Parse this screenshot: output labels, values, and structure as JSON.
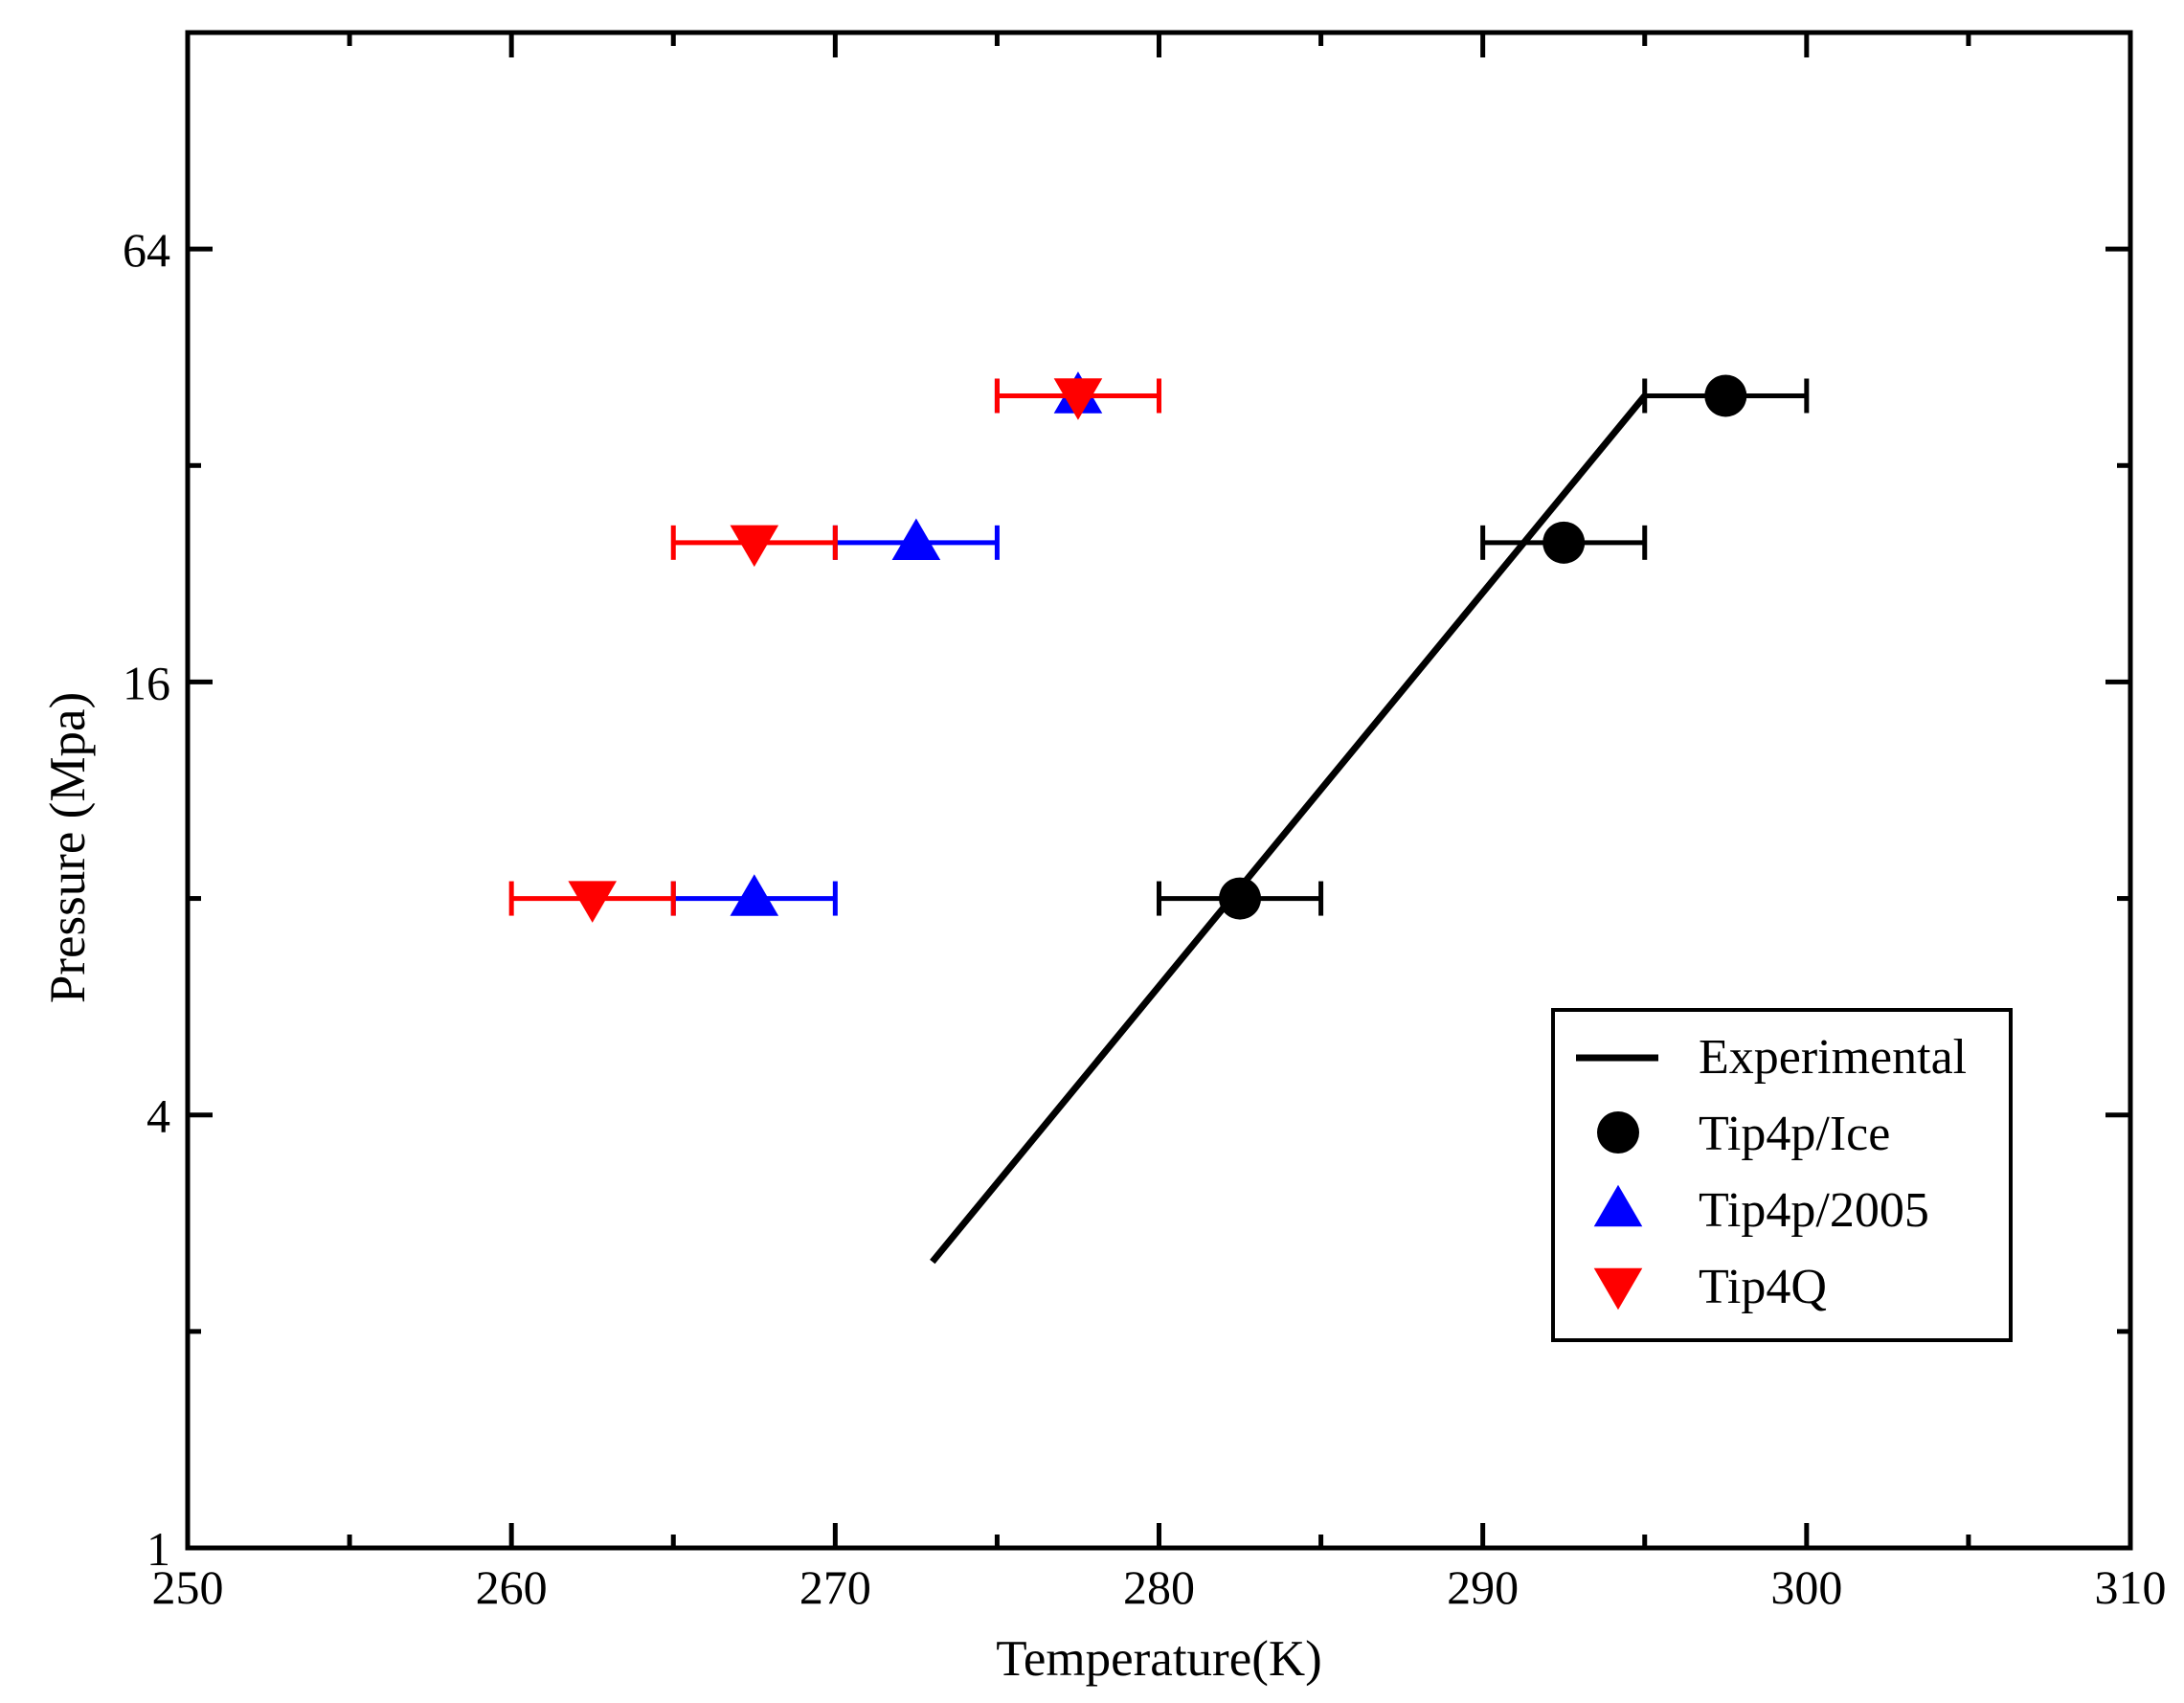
{
  "chart_data": {
    "type": "scatter",
    "xlabel": "Temperature(K)",
    "ylabel": "Pressure (Mpa)",
    "xlim": [
      250,
      310
    ],
    "ylim": [
      1,
      128
    ],
    "yscale": "log2",
    "xticks": [
      "250",
      "260",
      "270",
      "280",
      "290",
      "300",
      "310"
    ],
    "yticks": [
      "1",
      "4",
      "16",
      "64"
    ],
    "legend_position": "lower-right",
    "grid": false,
    "series": [
      {
        "name": "Experimental",
        "kind": "line",
        "color": "#000000",
        "points": [
          [
            273,
            2.5
          ],
          [
            295,
            40
          ]
        ]
      },
      {
        "name": "Tip4p/Ice",
        "kind": "scatter",
        "marker": "circle",
        "color": "#000000",
        "points": [
          [
            282.5,
            8
          ],
          [
            292.5,
            25
          ],
          [
            297.5,
            40
          ]
        ],
        "xerr": [
          2.5,
          2.5,
          2.5
        ]
      },
      {
        "name": "Tip4p/2005",
        "kind": "scatter",
        "marker": "triangle-up",
        "color": "#0000ff",
        "points": [
          [
            267.5,
            8
          ],
          [
            272.5,
            25
          ],
          [
            277.5,
            40
          ]
        ],
        "xerr": [
          2.5,
          2.5,
          2.5
        ]
      },
      {
        "name": "Tip4Q",
        "kind": "scatter",
        "marker": "triangle-down",
        "color": "#ff0000",
        "points": [
          [
            262.5,
            8
          ],
          [
            267.5,
            25
          ],
          [
            277.5,
            40
          ]
        ],
        "xerr": [
          2.5,
          2.5,
          2.5
        ]
      }
    ]
  }
}
